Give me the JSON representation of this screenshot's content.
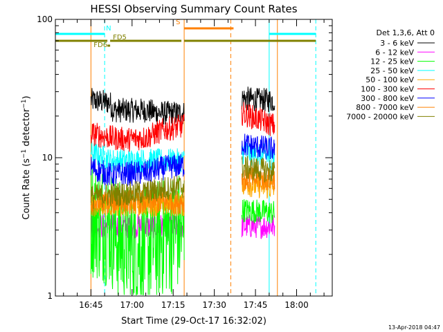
{
  "chart_data": {
    "type": "line",
    "title": "HESSI Observing Summary Count Rates",
    "xlabel": "Start Time (29-Oct-17 16:32:02)",
    "ylabel": "Count Rate (s⁻¹ detector⁻¹)",
    "ylabel_prefix": "Count Rate (s",
    "ylabel_mid": " detector",
    "ylabel_suffix": ")",
    "ylabel_sup": "−1",
    "yscale": "log",
    "ylim": [
      1,
      100
    ],
    "xlim": [
      "16:32:02",
      "18:13:00"
    ],
    "x_ticks": [
      {
        "t": "16:45",
        "label": "16:45"
      },
      {
        "t": "17:00",
        "label": "17:00"
      },
      {
        "t": "17:15",
        "label": "17:15"
      },
      {
        "t": "17:30",
        "label": "17:30"
      },
      {
        "t": "17:45",
        "label": "17:45"
      },
      {
        "t": "18:00",
        "label": "18:00"
      }
    ],
    "y_ticks": [
      {
        "v": 1,
        "label": "1"
      },
      {
        "v": 10,
        "label": "10"
      },
      {
        "v": 100,
        "label": "100"
      }
    ],
    "footer": "13-Apr-2018 04:47",
    "legend_position": "right",
    "legend_title": "Det 1,3,6, Att 0",
    "series": [
      {
        "name": "3 - 6 keV",
        "color": "#000000",
        "segments": [
          {
            "start": "16:45:00",
            "end": "17:19:00",
            "points": [
              [
                "16:45:00",
                26
              ],
              [
                "16:52:00",
                25
              ],
              [
                "16:53:00",
                22
              ],
              [
                "17:05:00",
                22
              ],
              [
                "17:10:00",
                21
              ],
              [
                "17:19:00",
                21
              ]
            ]
          },
          {
            "start": "17:40:00",
            "end": "17:52:00",
            "points": [
              [
                "17:40:00",
                27
              ],
              [
                "17:46:00",
                26
              ],
              [
                "17:52:00",
                26
              ]
            ]
          }
        ]
      },
      {
        "name": "6 - 12 keV",
        "color": "#ff00ff",
        "segments": [
          {
            "start": "16:45:00",
            "end": "17:19:00",
            "points": [
              [
                "16:45:00",
                3.2
              ],
              [
                "17:19:00",
                3.2
              ]
            ]
          },
          {
            "start": "17:40:00",
            "end": "17:52:00",
            "points": [
              [
                "17:40:00",
                3.2
              ],
              [
                "17:52:00",
                3.2
              ]
            ]
          }
        ]
      },
      {
        "name": "12 - 25 keV",
        "color": "#00ff00",
        "segments": [
          {
            "start": "16:45:00",
            "end": "17:19:00",
            "points": [
              [
                "16:45:00",
                3.8
              ],
              [
                "16:52:00",
                3.2
              ],
              [
                "16:56:00",
                2.4
              ],
              [
                "17:05:00",
                2.2
              ],
              [
                "17:12:00",
                2.8
              ],
              [
                "17:19:00",
                3.0
              ]
            ]
          },
          {
            "start": "17:40:00",
            "end": "17:52:00",
            "points": [
              [
                "17:40:00",
                4.2
              ],
              [
                "17:52:00",
                4.0
              ]
            ]
          }
        ]
      },
      {
        "name": "25 - 50 keV",
        "color": "#00ffff",
        "segments": [
          {
            "start": "16:45:00",
            "end": "17:19:00",
            "points": [
              [
                "16:45:00",
                11
              ],
              [
                "16:52:00",
                9.5
              ],
              [
                "17:19:00",
                9.5
              ]
            ]
          },
          {
            "start": "17:40:00",
            "end": "17:52:00",
            "points": [
              [
                "17:40:00",
                11
              ],
              [
                "17:52:00",
                10
              ]
            ]
          }
        ]
      },
      {
        "name": "50 - 100 keV",
        "color": "#ffaa00",
        "segments": [
          {
            "start": "16:45:00",
            "end": "17:19:00",
            "points": [
              [
                "16:45:00",
                4.6
              ],
              [
                "17:19:00",
                4.6
              ]
            ]
          },
          {
            "start": "17:40:00",
            "end": "17:52:00",
            "points": [
              [
                "17:40:00",
                6.5
              ],
              [
                "17:52:00",
                6.0
              ]
            ]
          }
        ]
      },
      {
        "name": "100 - 300 keV",
        "color": "#ff0000",
        "segments": [
          {
            "start": "16:45:00",
            "end": "17:19:00",
            "points": [
              [
                "16:45:00",
                15
              ],
              [
                "16:52:00",
                14
              ],
              [
                "16:58:00",
                13.5
              ],
              [
                "17:05:00",
                14
              ],
              [
                "17:12:00",
                16
              ],
              [
                "17:19:00",
                17
              ]
            ]
          },
          {
            "start": "17:40:00",
            "end": "17:52:00",
            "points": [
              [
                "17:40:00",
                21
              ],
              [
                "17:46:00",
                19
              ],
              [
                "17:52:00",
                17
              ]
            ]
          }
        ]
      },
      {
        "name": "300 - 800 keV",
        "color": "#0000ff",
        "segments": [
          {
            "start": "16:45:00",
            "end": "17:19:00",
            "points": [
              [
                "16:45:00",
                8.5
              ],
              [
                "16:52:00",
                7.5
              ],
              [
                "17:05:00",
                7.8
              ],
              [
                "17:12:00",
                8.5
              ],
              [
                "17:19:00",
                8.8
              ]
            ]
          },
          {
            "start": "17:40:00",
            "end": "17:52:00",
            "points": [
              [
                "17:40:00",
                12.5
              ],
              [
                "17:52:00",
                11.5
              ]
            ]
          }
        ]
      },
      {
        "name": "800 - 7000 keV",
        "color": "#ff8000",
        "segments": [
          {
            "start": "16:45:00",
            "end": "17:19:00",
            "points": [
              [
                "16:45:00",
                4.5
              ],
              [
                "16:52:00",
                4.8
              ],
              [
                "17:05:00",
                4.8
              ],
              [
                "17:12:00",
                4.8
              ],
              [
                "17:19:00",
                4.8
              ]
            ]
          },
          {
            "start": "17:40:00",
            "end": "17:52:00",
            "points": [
              [
                "17:40:00",
                7.0
              ],
              [
                "17:52:00",
                7.0
              ]
            ]
          }
        ]
      },
      {
        "name": "7000 - 20000 keV",
        "color": "#808000",
        "segments": [
          {
            "start": "16:45:00",
            "end": "17:19:00",
            "points": [
              [
                "16:45:00",
                5.2
              ],
              [
                "16:52:00",
                5.4
              ],
              [
                "17:05:00",
                5.6
              ],
              [
                "17:12:00",
                6.0
              ],
              [
                "17:19:00",
                6.2
              ]
            ]
          },
          {
            "start": "17:40:00",
            "end": "17:52:00",
            "points": [
              [
                "17:40:00",
                8.5
              ],
              [
                "17:52:00",
                8.0
              ]
            ]
          }
        ]
      }
    ],
    "vertical_markers": [
      {
        "t": "16:32:02",
        "style": "solid",
        "color": "#00ffff"
      },
      {
        "t": "16:50:00",
        "style": "dashed",
        "color": "#00ffff"
      },
      {
        "t": "17:50:00",
        "style": "solid",
        "color": "#00ffff"
      },
      {
        "t": "18:07:00",
        "style": "dashed",
        "color": "#00ffff"
      },
      {
        "t": "16:45:00",
        "style": "solid",
        "color": "#ff8000"
      },
      {
        "t": "17:19:00",
        "style": "solid",
        "color": "#ff8000"
      },
      {
        "t": "17:36:00",
        "style": "dashed",
        "color": "#ff8000"
      },
      {
        "t": "17:53:00",
        "style": "solid",
        "color": "#ff8000"
      }
    ],
    "flag_bars": [
      {
        "color": "#00ffff",
        "y": 49,
        "label": "N",
        "label_at": "16:50:30",
        "label_y": 44,
        "label_anchor": "start",
        "ranges": [
          [
            "16:32:02",
            "16:50:00"
          ],
          [
            "17:50:00",
            "18:07:00"
          ]
        ]
      },
      {
        "color": "#ff8000",
        "y": 41,
        "label": "S",
        "label_at": "17:16:00",
        "label_y": 35,
        "label_anchor": "start",
        "ranges": [
          [
            "17:19:00",
            "17:37:00"
          ]
        ]
      },
      {
        "color": "#808000",
        "y": 59,
        "label": "FD6",
        "label_at": "16:51:00",
        "label_y": 68,
        "label_anchor": "end",
        "ranges": [
          [
            "16:32:02",
            "16:51:00"
          ],
          [
            "16:52:00",
            "17:18:00"
          ],
          [
            "17:19:00",
            "18:07:00"
          ]
        ]
      },
      {
        "color": "#808000",
        "y": 66,
        "label": "FD5",
        "label_at": "16:53:00",
        "label_y": 57,
        "label_anchor": "start",
        "ranges": [
          [
            "16:51:00",
            "16:52:00"
          ]
        ]
      }
    ]
  }
}
